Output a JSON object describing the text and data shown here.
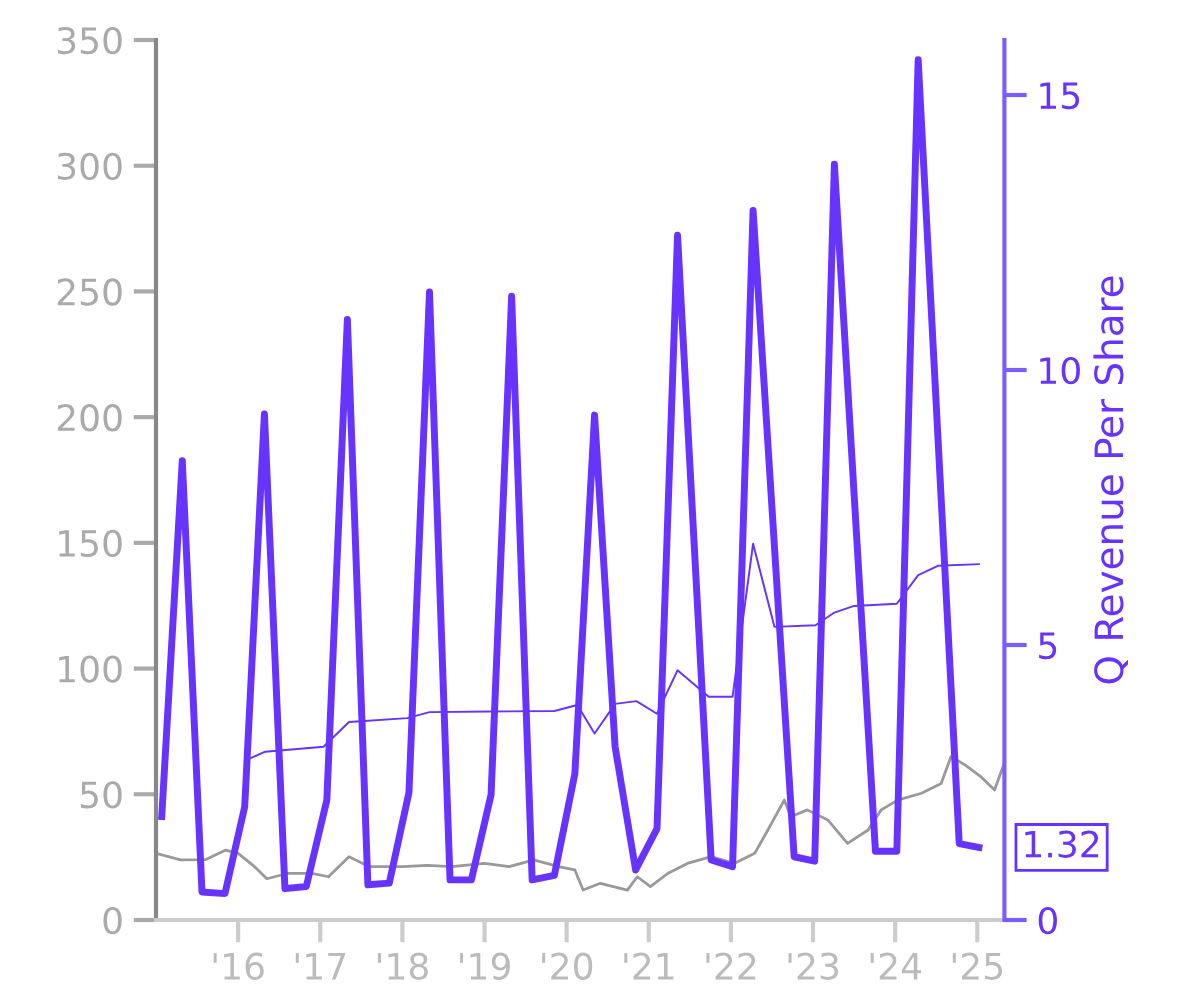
{
  "chart_data": {
    "type": "line",
    "y2label": "Q Revenue Per Share",
    "xlim": [
      2015.0,
      2025.33
    ],
    "xticks": [
      {
        "value": 2016,
        "label": "'16"
      },
      {
        "value": 2017,
        "label": "'17"
      },
      {
        "value": 2018,
        "label": "'18"
      },
      {
        "value": 2019,
        "label": "'19"
      },
      {
        "value": 2020,
        "label": "'20"
      },
      {
        "value": 2021,
        "label": "'21"
      },
      {
        "value": 2022,
        "label": "'22"
      },
      {
        "value": 2023,
        "label": "'23"
      },
      {
        "value": 2024,
        "label": "'24"
      },
      {
        "value": 2025,
        "label": "'25"
      }
    ],
    "ylim": [
      0,
      350
    ],
    "yticks": [
      0,
      50,
      100,
      150,
      200,
      250,
      300,
      350
    ],
    "y2lim": [
      0,
      16
    ],
    "y2ticks": [
      0,
      5,
      10,
      15
    ],
    "grid": false,
    "marker": "none",
    "line_style": "solid",
    "series": [
      {
        "color": "#999999",
        "axis": "y",
        "x": [
          2015.0,
          2015.3,
          2015.6,
          2015.85,
          2016.0,
          2016.2,
          2016.35,
          2016.6,
          2016.9,
          2017.1,
          2017.35,
          2017.6,
          2018.0,
          2018.3,
          2018.6,
          2019.0,
          2019.3,
          2019.6,
          2019.9,
          2020.1,
          2020.2,
          2020.41,
          2020.74,
          2020.86,
          2021.02,
          2021.23,
          2021.47,
          2021.76,
          2022.04,
          2022.29,
          2022.45,
          2022.65,
          2022.73,
          2022.93,
          2023.18,
          2023.42,
          2023.67,
          2023.83,
          2024.03,
          2024.32,
          2024.56,
          2024.68,
          2024.85,
          2025.05,
          2025.21,
          2025.33
        ],
        "values": [
          26.5,
          23.9,
          24,
          27.8,
          26.5,
          21.2,
          16.4,
          18.5,
          18.5,
          17.2,
          25.2,
          21.2,
          21.2,
          21.7,
          21.2,
          22.5,
          21.2,
          23.9,
          21.2,
          19.9,
          11.9,
          14.6,
          11.9,
          17.2,
          13.3,
          18.5,
          22.5,
          25.2,
          22.5,
          26.5,
          35.8,
          47.7,
          41.1,
          43.8,
          39.8,
          30.5,
          35.8,
          43.8,
          47.7,
          50.4,
          54.3,
          65,
          61.7,
          56.8,
          51.7,
          62.5
        ]
      },
      {
        "color": "#6633ff",
        "axis": "y2",
        "x": [
          2015.07,
          2015.32,
          2015.56,
          2015.84,
          2016.08,
          2016.32,
          2016.57,
          2016.83,
          2017.08,
          2017.33,
          2017.58,
          2017.84,
          2018.08,
          2018.33,
          2018.58,
          2018.84,
          2019.08,
          2019.33,
          2019.58,
          2019.85,
          2020.1,
          2020.34,
          2020.59,
          2020.84,
          2021.1,
          2021.35,
          2021.76,
          2022.02,
          2022.27,
          2022.77,
          2023.02,
          2023.26,
          2023.76,
          2024.02,
          2024.28,
          2024.78,
          2025.02
        ],
        "values": [
          1.88,
          8.35,
          0.51,
          0.48,
          2.06,
          9.2,
          0.57,
          0.61,
          2.18,
          10.92,
          0.64,
          0.67,
          2.32,
          11.42,
          0.73,
          0.73,
          2.28,
          11.34,
          0.73,
          0.81,
          2.66,
          9.18,
          3.15,
          0.91,
          1.66,
          12.45,
          1.09,
          0.97,
          12.9,
          1.15,
          1.07,
          13.74,
          1.25,
          1.25,
          15.64,
          1.39,
          1.32
        ],
        "value_labels": [
          null,
          null,
          null,
          null,
          null,
          null,
          null,
          null,
          null,
          null,
          null,
          null,
          null,
          null,
          null,
          null,
          null,
          null,
          null,
          null,
          null,
          null,
          null,
          null,
          null,
          null,
          null,
          null,
          null,
          null,
          null,
          null,
          null,
          null,
          null,
          null,
          "1.32"
        ]
      },
      {
        "color": "#6633ff",
        "axis": "y2",
        "x": [
          2016.1,
          2016.33,
          2017.04,
          2017.35,
          2018.06,
          2018.33,
          2019.07,
          2019.85,
          2020.13,
          2020.34,
          2020.59,
          2020.85,
          2021.1,
          2021.35,
          2021.73,
          2022.02,
          2022.27,
          2022.53,
          2023.03,
          2023.26,
          2023.5,
          2024.02,
          2024.28,
          2024.52,
          2025.02
        ],
        "values": [
          2.91,
          3.06,
          3.15,
          3.6,
          3.67,
          3.78,
          3.79,
          3.8,
          3.91,
          3.39,
          3.93,
          3.98,
          3.75,
          4.54,
          4.06,
          4.06,
          6.84,
          5.33,
          5.36,
          5.59,
          5.71,
          5.75,
          6.27,
          6.44,
          6.47
        ]
      }
    ]
  }
}
